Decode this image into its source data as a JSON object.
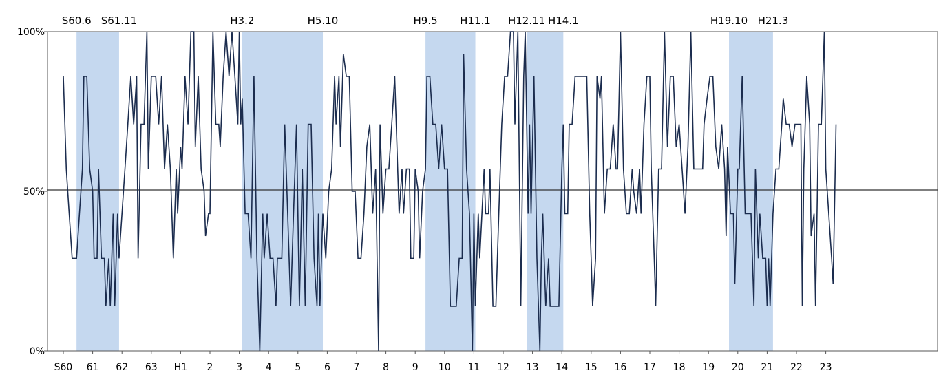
{
  "chart_data": {
    "type": "line",
    "ylim": [
      0,
      100
    ],
    "yticks": [
      "0%",
      "50%",
      "100%"
    ],
    "x_range": [
      0,
      30.5
    ],
    "reference_line": 50,
    "x_ticks": [
      {
        "label": "S60",
        "x": 0
      },
      {
        "label": "61",
        "x": 1
      },
      {
        "label": "62",
        "x": 2
      },
      {
        "label": "63",
        "x": 3
      },
      {
        "label": "H1",
        "x": 4
      },
      {
        "label": "2",
        "x": 5
      },
      {
        "label": "3",
        "x": 6
      },
      {
        "label": "4",
        "x": 7
      },
      {
        "label": "5",
        "x": 8
      },
      {
        "label": "6",
        "x": 9
      },
      {
        "label": "7",
        "x": 10
      },
      {
        "label": "8",
        "x": 11
      },
      {
        "label": "9",
        "x": 12
      },
      {
        "label": "10",
        "x": 13
      },
      {
        "label": "11",
        "x": 14
      },
      {
        "label": "12",
        "x": 15
      },
      {
        "label": "13",
        "x": 16
      },
      {
        "label": "14",
        "x": 17
      },
      {
        "label": "15",
        "x": 18
      },
      {
        "label": "16",
        "x": 19
      },
      {
        "label": "17",
        "x": 20
      },
      {
        "label": "18",
        "x": 21
      },
      {
        "label": "19",
        "x": 22
      },
      {
        "label": "20",
        "x": 23
      },
      {
        "label": "21",
        "x": 24
      },
      {
        "label": "22",
        "x": 25
      },
      {
        "label": "23",
        "x": 26
      }
    ],
    "shaded_periods": [
      {
        "start": 0.45,
        "end": 1.9,
        "start_label": "S60.6",
        "end_label": "S61.11"
      },
      {
        "start": 6.1,
        "end": 8.85,
        "start_label": "H3.2",
        "end_label": "H5.10"
      },
      {
        "start": 12.35,
        "end": 14.05,
        "start_label": "H9.5",
        "end_label": "H11.1"
      },
      {
        "start": 15.8,
        "end": 17.05,
        "start_label": "H12.11",
        "end_label": "H14.1"
      },
      {
        "start": 22.7,
        "end": 24.2,
        "start_label": "H19.10",
        "end_label": "H21.3"
      }
    ],
    "series": [
      {
        "color": "#1b2c4e",
        "points": [
          [
            0,
            86
          ],
          [
            0.1,
            57
          ],
          [
            0.2,
            43
          ],
          [
            0.3,
            29
          ],
          [
            0.45,
            29
          ],
          [
            0.55,
            43
          ],
          [
            0.65,
            57
          ],
          [
            0.7,
            86
          ],
          [
            0.8,
            86
          ],
          [
            0.9,
            57
          ],
          [
            1.0,
            50
          ],
          [
            1.05,
            29
          ],
          [
            1.15,
            29
          ],
          [
            1.2,
            57
          ],
          [
            1.3,
            29
          ],
          [
            1.4,
            29
          ],
          [
            1.45,
            14
          ],
          [
            1.55,
            29
          ],
          [
            1.6,
            14
          ],
          [
            1.7,
            43
          ],
          [
            1.75,
            14
          ],
          [
            1.85,
            43
          ],
          [
            1.9,
            29
          ],
          [
            2.0,
            43
          ],
          [
            2.1,
            57
          ],
          [
            2.2,
            71
          ],
          [
            2.3,
            86
          ],
          [
            2.4,
            71
          ],
          [
            2.5,
            86
          ],
          [
            2.55,
            29
          ],
          [
            2.65,
            71
          ],
          [
            2.75,
            71
          ],
          [
            2.85,
            100
          ],
          [
            2.9,
            57
          ],
          [
            3.0,
            86
          ],
          [
            3.15,
            86
          ],
          [
            3.25,
            71
          ],
          [
            3.35,
            86
          ],
          [
            3.45,
            57
          ],
          [
            3.55,
            71
          ],
          [
            3.65,
            57
          ],
          [
            3.75,
            29
          ],
          [
            3.85,
            57
          ],
          [
            3.9,
            43
          ],
          [
            4.0,
            64
          ],
          [
            4.05,
            57
          ],
          [
            4.15,
            86
          ],
          [
            4.25,
            71
          ],
          [
            4.35,
            100
          ],
          [
            4.45,
            100
          ],
          [
            4.5,
            64
          ],
          [
            4.6,
            86
          ],
          [
            4.7,
            57
          ],
          [
            4.8,
            50
          ],
          [
            4.85,
            36
          ],
          [
            4.95,
            43
          ],
          [
            5.0,
            43
          ],
          [
            5.1,
            100
          ],
          [
            5.2,
            71
          ],
          [
            5.3,
            71
          ],
          [
            5.35,
            64
          ],
          [
            5.45,
            86
          ],
          [
            5.55,
            100
          ],
          [
            5.65,
            86
          ],
          [
            5.75,
            100
          ],
          [
            5.85,
            86
          ],
          [
            5.95,
            71
          ],
          [
            6.0,
            100
          ],
          [
            6.05,
            71
          ],
          [
            6.1,
            79
          ],
          [
            6.2,
            43
          ],
          [
            6.3,
            43
          ],
          [
            6.4,
            29
          ],
          [
            6.5,
            86
          ],
          [
            6.6,
            29
          ],
          [
            6.7,
            0
          ],
          [
            6.8,
            43
          ],
          [
            6.85,
            29
          ],
          [
            6.95,
            43
          ],
          [
            7.05,
            29
          ],
          [
            7.15,
            29
          ],
          [
            7.25,
            14
          ],
          [
            7.3,
            29
          ],
          [
            7.45,
            29
          ],
          [
            7.55,
            71
          ],
          [
            7.65,
            43
          ],
          [
            7.75,
            14
          ],
          [
            7.85,
            43
          ],
          [
            7.95,
            71
          ],
          [
            8.05,
            14
          ],
          [
            8.15,
            57
          ],
          [
            8.25,
            14
          ],
          [
            8.35,
            71
          ],
          [
            8.45,
            71
          ],
          [
            8.55,
            29
          ],
          [
            8.65,
            14
          ],
          [
            8.7,
            43
          ],
          [
            8.75,
            14
          ],
          [
            8.85,
            43
          ],
          [
            8.95,
            29
          ],
          [
            9.05,
            50
          ],
          [
            9.15,
            57
          ],
          [
            9.25,
            86
          ],
          [
            9.3,
            71
          ],
          [
            9.4,
            86
          ],
          [
            9.45,
            64
          ],
          [
            9.55,
            93
          ],
          [
            9.65,
            86
          ],
          [
            9.75,
            86
          ],
          [
            9.85,
            50
          ],
          [
            9.95,
            50
          ],
          [
            10.05,
            29
          ],
          [
            10.15,
            29
          ],
          [
            10.25,
            43
          ],
          [
            10.35,
            64
          ],
          [
            10.45,
            71
          ],
          [
            10.55,
            43
          ],
          [
            10.65,
            57
          ],
          [
            10.75,
            0
          ],
          [
            10.8,
            71
          ],
          [
            10.9,
            43
          ],
          [
            11.0,
            57
          ],
          [
            11.1,
            57
          ],
          [
            11.2,
            71
          ],
          [
            11.3,
            86
          ],
          [
            11.45,
            43
          ],
          [
            11.55,
            57
          ],
          [
            11.6,
            43
          ],
          [
            11.7,
            57
          ],
          [
            11.8,
            57
          ],
          [
            11.85,
            29
          ],
          [
            11.95,
            29
          ],
          [
            12.0,
            57
          ],
          [
            12.1,
            50
          ],
          [
            12.15,
            29
          ],
          [
            12.25,
            50
          ],
          [
            12.35,
            57
          ],
          [
            12.4,
            86
          ],
          [
            12.5,
            86
          ],
          [
            12.6,
            71
          ],
          [
            12.7,
            71
          ],
          [
            12.8,
            57
          ],
          [
            12.9,
            71
          ],
          [
            13.0,
            57
          ],
          [
            13.1,
            57
          ],
          [
            13.2,
            14
          ],
          [
            13.3,
            14
          ],
          [
            13.4,
            14
          ],
          [
            13.5,
            29
          ],
          [
            13.6,
            29
          ],
          [
            13.65,
            93
          ],
          [
            13.75,
            57
          ],
          [
            13.85,
            43
          ],
          [
            13.95,
            0
          ],
          [
            14.0,
            43
          ],
          [
            14.05,
            14
          ],
          [
            14.15,
            43
          ],
          [
            14.2,
            29
          ],
          [
            14.35,
            57
          ],
          [
            14.4,
            43
          ],
          [
            14.5,
            43
          ],
          [
            14.55,
            57
          ],
          [
            14.65,
            14
          ],
          [
            14.75,
            14
          ],
          [
            14.85,
            43
          ],
          [
            14.95,
            71
          ],
          [
            15.05,
            86
          ],
          [
            15.15,
            86
          ],
          [
            15.25,
            100
          ],
          [
            15.35,
            100
          ],
          [
            15.4,
            71
          ],
          [
            15.5,
            100
          ],
          [
            15.6,
            14
          ],
          [
            15.7,
            86
          ],
          [
            15.75,
            100
          ],
          [
            15.85,
            43
          ],
          [
            15.9,
            71
          ],
          [
            15.95,
            43
          ],
          [
            16.05,
            86
          ],
          [
            16.1,
            57
          ],
          [
            16.15,
            29
          ],
          [
            16.25,
            0
          ],
          [
            16.3,
            29
          ],
          [
            16.35,
            43
          ],
          [
            16.45,
            14
          ],
          [
            16.55,
            29
          ],
          [
            16.6,
            14
          ],
          [
            16.65,
            14
          ],
          [
            16.75,
            14
          ],
          [
            16.85,
            14
          ],
          [
            16.9,
            14
          ],
          [
            17.0,
            57
          ],
          [
            17.05,
            71
          ],
          [
            17.1,
            43
          ],
          [
            17.2,
            43
          ],
          [
            17.25,
            71
          ],
          [
            17.35,
            71
          ],
          [
            17.45,
            86
          ],
          [
            17.55,
            86
          ],
          [
            17.65,
            86
          ],
          [
            17.75,
            86
          ],
          [
            17.85,
            86
          ],
          [
            17.95,
            43
          ],
          [
            18.0,
            29
          ],
          [
            18.05,
            14
          ],
          [
            18.15,
            29
          ],
          [
            18.2,
            86
          ],
          [
            18.3,
            79
          ],
          [
            18.35,
            86
          ],
          [
            18.45,
            43
          ],
          [
            18.55,
            57
          ],
          [
            18.65,
            57
          ],
          [
            18.75,
            71
          ],
          [
            18.85,
            57
          ],
          [
            18.9,
            57
          ],
          [
            19.0,
            100
          ],
          [
            19.1,
            57
          ],
          [
            19.2,
            43
          ],
          [
            19.3,
            43
          ],
          [
            19.4,
            57
          ],
          [
            19.45,
            50
          ],
          [
            19.55,
            43
          ],
          [
            19.65,
            57
          ],
          [
            19.7,
            43
          ],
          [
            19.8,
            71
          ],
          [
            19.9,
            86
          ],
          [
            20.0,
            86
          ],
          [
            20.05,
            57
          ],
          [
            20.15,
            29
          ],
          [
            20.2,
            14
          ],
          [
            20.3,
            57
          ],
          [
            20.4,
            57
          ],
          [
            20.5,
            100
          ],
          [
            20.6,
            64
          ],
          [
            20.7,
            86
          ],
          [
            20.8,
            86
          ],
          [
            20.9,
            64
          ],
          [
            21.0,
            71
          ],
          [
            21.1,
            57
          ],
          [
            21.2,
            43
          ],
          [
            21.3,
            64
          ],
          [
            21.4,
            100
          ],
          [
            21.5,
            57
          ],
          [
            21.6,
            57
          ],
          [
            21.7,
            57
          ],
          [
            21.8,
            57
          ],
          [
            21.85,
            71
          ],
          [
            21.95,
            79
          ],
          [
            22.05,
            86
          ],
          [
            22.15,
            86
          ],
          [
            22.25,
            64
          ],
          [
            22.35,
            57
          ],
          [
            22.45,
            71
          ],
          [
            22.55,
            57
          ],
          [
            22.6,
            36
          ],
          [
            22.65,
            64
          ],
          [
            22.75,
            43
          ],
          [
            22.85,
            43
          ],
          [
            22.9,
            21
          ],
          [
            23.0,
            57
          ],
          [
            23.05,
            57
          ],
          [
            23.15,
            86
          ],
          [
            23.25,
            43
          ],
          [
            23.35,
            43
          ],
          [
            23.45,
            43
          ],
          [
            23.55,
            14
          ],
          [
            23.6,
            57
          ],
          [
            23.7,
            29
          ],
          [
            23.75,
            43
          ],
          [
            23.85,
            29
          ],
          [
            23.95,
            29
          ],
          [
            24.0,
            14
          ],
          [
            24.05,
            29
          ],
          [
            24.1,
            14
          ],
          [
            24.2,
            43
          ],
          [
            24.3,
            57
          ],
          [
            24.4,
            57
          ],
          [
            24.5,
            71
          ],
          [
            24.55,
            79
          ],
          [
            24.65,
            71
          ],
          [
            24.75,
            71
          ],
          [
            24.85,
            64
          ],
          [
            24.95,
            71
          ],
          [
            25.05,
            71
          ],
          [
            25.15,
            71
          ],
          [
            25.2,
            14
          ],
          [
            25.25,
            57
          ],
          [
            25.35,
            86
          ],
          [
            25.45,
            71
          ],
          [
            25.5,
            36
          ],
          [
            25.6,
            43
          ],
          [
            25.65,
            14
          ],
          [
            25.75,
            71
          ],
          [
            25.85,
            71
          ],
          [
            25.95,
            100
          ],
          [
            26.0,
            57
          ],
          [
            26.1,
            43
          ],
          [
            26.2,
            29
          ],
          [
            26.25,
            21
          ],
          [
            26.35,
            71
          ]
        ]
      }
    ],
    "grid": false,
    "legend": "none"
  }
}
